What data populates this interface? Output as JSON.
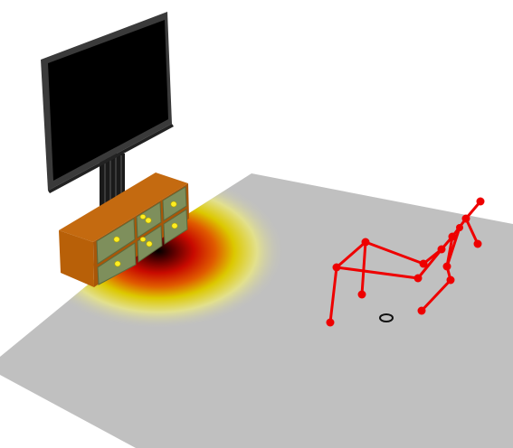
{
  "scene": {
    "background_color": "#ffffff",
    "floor_color": "#c0c0c0",
    "heatmap_colors": [
      "#c0c0c0",
      "#e6e68c",
      "#e0c800",
      "#dd2200",
      "#8a0000",
      "#000000"
    ],
    "tv_screen_color": "#000000",
    "tv_frame_color": "#3a3a3a",
    "cabinet_body_color": "#b35f0c",
    "drawer_color": "#7e8f5c",
    "drawer_knob_color": "#ffee22",
    "skeleton_color": "#ee0000",
    "floor_marker_color": "#111111"
  }
}
